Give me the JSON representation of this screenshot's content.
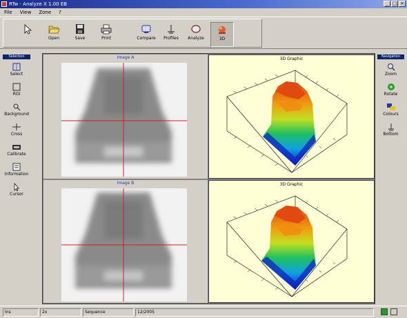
{
  "window": {
    "title": "RTw - Analyze X 1.00 EB"
  },
  "menu": {
    "items": [
      "File",
      "View",
      "Zone",
      "?"
    ]
  },
  "toolbar": {
    "buttons": [
      {
        "label": "",
        "icon": "arrow-icon"
      },
      {
        "label": "Open",
        "icon": "open-folder-icon"
      },
      {
        "label": "Save",
        "icon": "save-disk-icon"
      },
      {
        "label": "Print",
        "icon": "printer-icon"
      },
      {
        "label": "Compare",
        "icon": "compare-icon"
      },
      {
        "label": "Profiles",
        "icon": "profile-icon"
      },
      {
        "label": "Analyze",
        "icon": "analyze-icon"
      },
      {
        "label": "3D",
        "icon": "3d-icon",
        "pressed": true
      }
    ]
  },
  "left_panel": {
    "header": "Selection",
    "tools": [
      {
        "label": "Select",
        "icon": "select-icon"
      },
      {
        "label": "ROI",
        "icon": "roi-icon"
      },
      {
        "label": "Background",
        "icon": "background-icon"
      },
      {
        "label": "Cross",
        "icon": "crosshair-icon"
      },
      {
        "label": "Calibrate",
        "icon": "calibrate-icon"
      },
      {
        "label": "Information",
        "icon": "information-icon"
      },
      {
        "label": "Cursor",
        "icon": "cursor-icon"
      }
    ]
  },
  "right_panel": {
    "header": "Navigation",
    "tools": [
      {
        "label": "Zoom",
        "icon": "zoom-icon"
      },
      {
        "label": "Rotate",
        "icon": "rotate-icon"
      },
      {
        "label": "Colours",
        "icon": "colours-icon"
      },
      {
        "label": "Bottom",
        "icon": "bottom-icon"
      }
    ]
  },
  "views": {
    "top_image_title": "Image A",
    "bottom_image_title": "Image B",
    "top_plot_title": "3D Graphic",
    "bottom_plot_title": "3D Graphic"
  },
  "status": {
    "cells": [
      "Ins",
      "2x",
      "Sequence",
      "12/2005"
    ]
  },
  "colors": {
    "title_bar": "#1a2a8a",
    "plot_bg": "#ffffd8",
    "crosshair": "#d02020"
  }
}
